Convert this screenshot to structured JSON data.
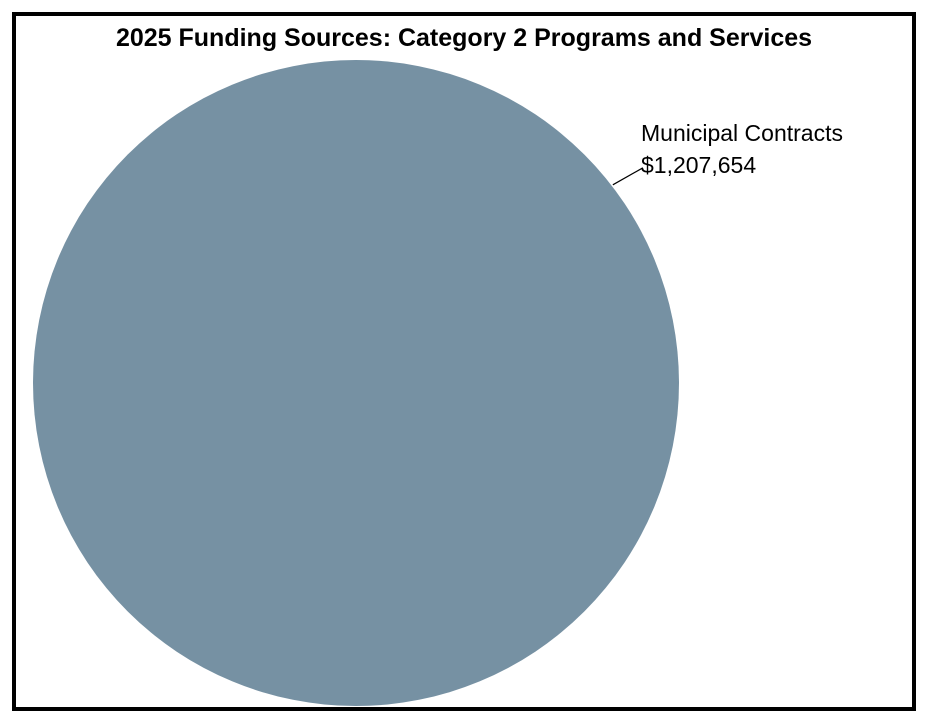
{
  "chart_data": {
    "type": "pie",
    "title": "2025 Funding Sources: Category 2 Programs and Services",
    "slices": [
      {
        "label": "Municipal Contracts",
        "value": 1207654,
        "value_label": "$1,207,654",
        "color": "#7691a3"
      }
    ]
  }
}
